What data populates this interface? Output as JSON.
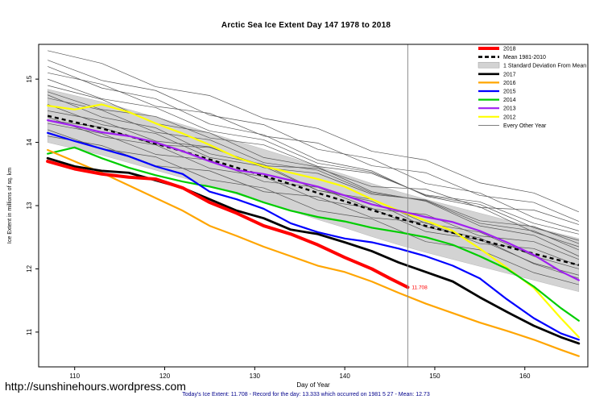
{
  "page": {
    "title": "Arctic Sea Ice Extent Day 147 1978 to 2018",
    "footer_note": "Today's Ice Extent: 11.708  - Record for the day: 13.333 which occurred on 1981 5 27  - Mean: 12.73",
    "site_link": "http://sunshinehours.wordpress.com"
  },
  "chart_data": {
    "type": "line",
    "title": "Arctic Sea Ice Extent Day 147 1978 to 2018",
    "xlabel": "Day of Year",
    "ylabel": "Ice Extent in millions of sq. km",
    "xlim": [
      106,
      167
    ],
    "ylim": [
      10.45,
      15.55
    ],
    "x_ticks": [
      110,
      120,
      130,
      140,
      150,
      160
    ],
    "y_ticks": [
      11,
      12,
      13,
      14,
      15
    ],
    "grid": false,
    "legend_position": "top-right-inside",
    "vline_x": 147,
    "vline_color": "#8C8C8C",
    "annotation": {
      "x": 147,
      "y": 11.708,
      "text": "11.708",
      "color": "#FF0000"
    },
    "days": [
      107,
      110,
      113,
      116,
      119,
      122,
      125,
      128,
      131,
      134,
      137,
      140,
      143,
      146,
      149,
      152,
      155,
      158,
      161,
      164,
      166
    ],
    "mean_line": {
      "label": "Mean 1981-2010",
      "color": "#000000",
      "dashed": true,
      "values": [
        14.42,
        14.32,
        14.22,
        14.1,
        13.98,
        13.86,
        13.73,
        13.6,
        13.47,
        13.34,
        13.2,
        13.07,
        12.93,
        12.8,
        12.68,
        12.57,
        12.46,
        12.35,
        12.24,
        12.13,
        12.06
      ]
    },
    "band": {
      "label": "1 Standard Deviation From Mean",
      "sd": 0.42,
      "color": "#D3D3D3"
    },
    "series": [
      {
        "name": "2018",
        "color": "#FF0000",
        "width": 4,
        "days": [
          107,
          110,
          113,
          116,
          119,
          122,
          125,
          128,
          131,
          134,
          137,
          140,
          143,
          145,
          147
        ],
        "values": [
          13.7,
          13.58,
          13.5,
          13.45,
          13.42,
          13.28,
          13.05,
          12.88,
          12.68,
          12.55,
          12.38,
          12.18,
          12.0,
          11.85,
          11.708
        ]
      },
      {
        "name": "2017",
        "color": "#000000",
        "width": 2.8,
        "values": [
          13.75,
          13.62,
          13.55,
          13.52,
          13.4,
          13.28,
          13.1,
          12.92,
          12.8,
          12.62,
          12.55,
          12.42,
          12.28,
          12.1,
          11.95,
          11.8,
          11.55,
          11.32,
          11.1,
          10.92,
          10.82
        ]
      },
      {
        "name": "2016",
        "color": "#FFA500",
        "width": 2.2,
        "values": [
          13.88,
          13.7,
          13.52,
          13.32,
          13.12,
          12.92,
          12.68,
          12.52,
          12.35,
          12.2,
          12.05,
          11.95,
          11.8,
          11.62,
          11.45,
          11.3,
          11.15,
          11.02,
          10.88,
          10.72,
          10.62
        ]
      },
      {
        "name": "2015",
        "color": "#0000FF",
        "width": 2.2,
        "values": [
          14.15,
          14.02,
          13.9,
          13.78,
          13.62,
          13.5,
          13.22,
          13.1,
          12.95,
          12.72,
          12.58,
          12.48,
          12.42,
          12.32,
          12.2,
          12.05,
          11.85,
          11.52,
          11.22,
          10.98,
          10.88
        ]
      },
      {
        "name": "2014",
        "color": "#00CD00",
        "width": 2.2,
        "values": [
          13.82,
          13.92,
          13.75,
          13.6,
          13.48,
          13.38,
          13.3,
          13.2,
          13.05,
          12.92,
          12.82,
          12.75,
          12.65,
          12.58,
          12.5,
          12.38,
          12.2,
          12.0,
          11.72,
          11.38,
          11.18
        ]
      },
      {
        "name": "2013",
        "color": "#A020F0",
        "width": 2.2,
        "values": [
          14.35,
          14.26,
          14.16,
          14.1,
          14.0,
          13.86,
          13.7,
          13.56,
          13.5,
          13.4,
          13.3,
          13.16,
          13.02,
          12.92,
          12.82,
          12.74,
          12.6,
          12.42,
          12.22,
          11.96,
          11.82
        ]
      },
      {
        "name": "2012",
        "color": "#FFFF00",
        "width": 2.2,
        "values": [
          14.58,
          14.52,
          14.6,
          14.48,
          14.3,
          14.14,
          13.96,
          13.76,
          13.62,
          13.52,
          13.42,
          13.3,
          13.1,
          12.92,
          12.76,
          12.6,
          12.32,
          12.02,
          11.7,
          11.22,
          10.92
        ]
      }
    ],
    "background_years": {
      "label": "Every Other Year",
      "color": "#555555",
      "width": 0.7,
      "days": [
        107,
        113,
        119,
        125,
        131,
        137,
        143,
        149,
        155,
        161,
        166
      ],
      "lines": [
        [
          15.45,
          15.25,
          14.88,
          14.74,
          14.38,
          14.22,
          13.86,
          13.72,
          13.36,
          13.2,
          12.9
        ],
        [
          15.3,
          14.98,
          14.82,
          14.43,
          14.28,
          13.89,
          13.74,
          13.35,
          13.2,
          12.81,
          12.6
        ],
        [
          15.1,
          14.92,
          14.57,
          14.46,
          14.1,
          13.99,
          13.63,
          13.52,
          13.16,
          13.05,
          12.75
        ],
        [
          15.0,
          14.69,
          14.55,
          14.18,
          14.04,
          13.67,
          13.53,
          13.16,
          13.02,
          12.65,
          12.45
        ],
        [
          14.9,
          14.68,
          14.3,
          14.15,
          13.76,
          13.61,
          13.22,
          13.07,
          12.68,
          12.53,
          12.2
        ],
        [
          14.8,
          14.52,
          14.41,
          14.07,
          13.96,
          13.62,
          13.51,
          13.17,
          13.06,
          12.72,
          12.55
        ],
        [
          14.7,
          14.51,
          14.16,
          14.04,
          13.68,
          13.56,
          13.2,
          13.08,
          12.72,
          12.6,
          12.3
        ],
        [
          14.6,
          14.28,
          14.14,
          13.76,
          13.62,
          13.24,
          13.1,
          12.72,
          12.58,
          12.2,
          12.0
        ],
        [
          14.5,
          14.34,
          14.02,
          13.93,
          13.6,
          13.51,
          13.18,
          13.09,
          12.76,
          12.67,
          12.4
        ],
        [
          14.4,
          14.09,
          13.96,
          13.59,
          13.46,
          13.09,
          12.96,
          12.59,
          12.46,
          12.09,
          11.9
        ],
        [
          14.3,
          14.14,
          13.81,
          13.72,
          13.38,
          13.29,
          12.95,
          12.86,
          12.52,
          12.43,
          12.15
        ],
        [
          14.2,
          13.9,
          13.77,
          13.41,
          13.28,
          12.92,
          12.79,
          12.43,
          12.3,
          11.94,
          11.75
        ],
        [
          14.1,
          13.95,
          13.63,
          13.55,
          13.22,
          13.14,
          12.81,
          12.73,
          12.4,
          12.32,
          12.05
        ],
        [
          14.35,
          14.24,
          13.96,
          13.92,
          13.63,
          13.59,
          13.3,
          13.26,
          12.97,
          12.93,
          12.7
        ],
        [
          14.75,
          14.4,
          14.23,
          13.82,
          13.65,
          13.24,
          13.07,
          12.66,
          12.49,
          12.08,
          11.85
        ],
        [
          15.2,
          14.86,
          14.69,
          14.29,
          14.12,
          13.72,
          13.55,
          13.15,
          12.98,
          12.58,
          12.35
        ]
      ]
    },
    "legend": [
      {
        "label": "2018",
        "type": "line",
        "color": "#FF0000",
        "width": 4
      },
      {
        "label": "Mean 1981-2010",
        "type": "dashed",
        "color": "#000000",
        "width": 2.6
      },
      {
        "label": "1 Standard Deviation From Mean",
        "type": "box",
        "color": "#D3D3D3"
      },
      {
        "label": "2017",
        "type": "line",
        "color": "#000000",
        "width": 2.6
      },
      {
        "label": "2016",
        "type": "line",
        "color": "#FFA500",
        "width": 2.2
      },
      {
        "label": "2015",
        "type": "line",
        "color": "#0000FF",
        "width": 2.2
      },
      {
        "label": "2014",
        "type": "line",
        "color": "#00CD00",
        "width": 2.2
      },
      {
        "label": "2013",
        "type": "line",
        "color": "#A020F0",
        "width": 2.2
      },
      {
        "label": "2012",
        "type": "line",
        "color": "#FFFF00",
        "width": 2.2
      },
      {
        "label": "Every Other Year",
        "type": "line",
        "color": "#555555",
        "width": 0.8
      }
    ]
  }
}
